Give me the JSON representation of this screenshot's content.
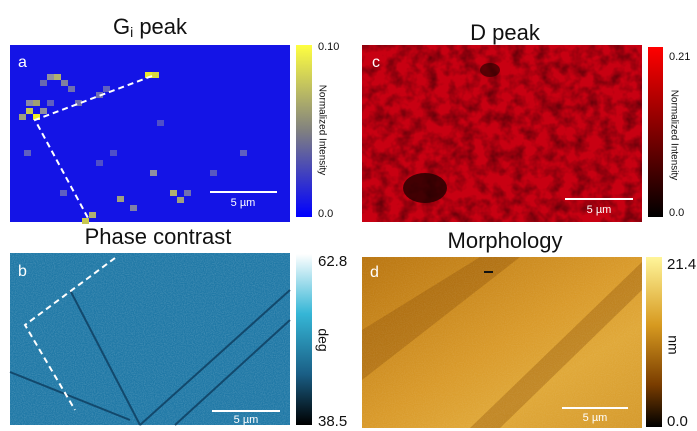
{
  "panels": [
    {
      "label": "a",
      "title": {
        "main": "G",
        "subscript": "i",
        "rest": " peak"
      },
      "colorbar_max": "0.10",
      "colorbar_min": "0.0",
      "colorbar_label": "Normalized Intensity",
      "scale_bar": "5 µm"
    },
    {
      "label": "c",
      "title": "D peak",
      "colorbar_max": "0.21",
      "colorbar_min": "0.0",
      "colorbar_label": "Normalized Intensity",
      "scale_bar": "5 µm"
    },
    {
      "label": "b",
      "title": "Phase contrast",
      "colorbar_max": "62.8",
      "colorbar_min": "38.5",
      "colorbar_label": "deg",
      "scale_bar": "5 µm"
    },
    {
      "label": "d",
      "title": "Morphology",
      "colorbar_max": "21.4",
      "colorbar_min": "0.0",
      "colorbar_label": "nm",
      "scale_bar": "5 µm"
    }
  ]
}
